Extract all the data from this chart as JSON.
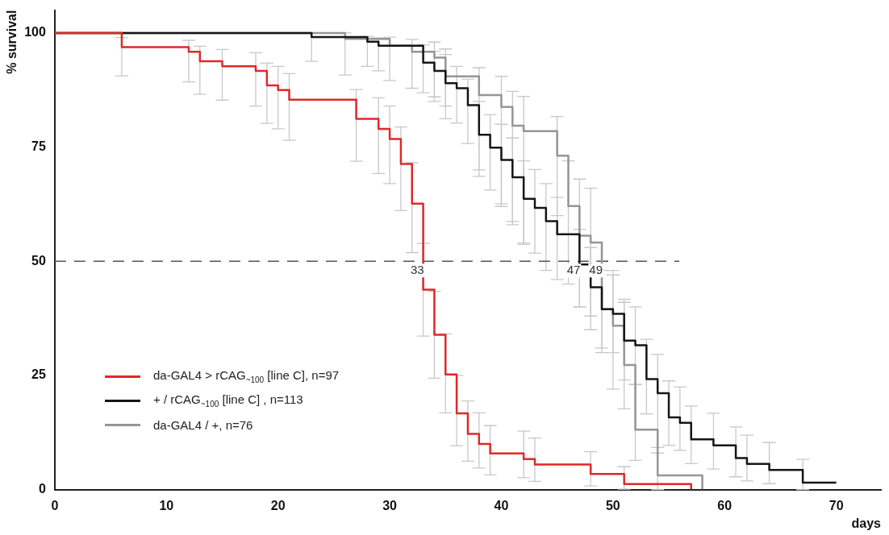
{
  "chart_data": {
    "type": "step",
    "xlabel": "days",
    "ylabel": "% survival",
    "xlim": [
      0,
      74
    ],
    "xticks": [
      0,
      10,
      20,
      30,
      40,
      50,
      60,
      70
    ],
    "ylim": [
      0,
      105
    ],
    "yticks": [
      0,
      25,
      50,
      75,
      100
    ],
    "grid": false,
    "legend": "bottom left",
    "marker": "none",
    "line_style": "solid",
    "ref_lines": [
      {
        "axis": "y",
        "value": 50,
        "label": null,
        "color": "#555555",
        "line_style": "dashed"
      }
    ],
    "annotations": [
      {
        "text": "33",
        "x": 33,
        "y": 50
      },
      {
        "text": "47",
        "x": 47,
        "y": 50
      },
      {
        "text": "49",
        "x": 49,
        "y": 50
      }
    ],
    "series": [
      {
        "name": "da-GAL4 > rCAG$_{~100}$ [line C], n=97",
        "color": "#e02828",
        "x": [
          0,
          6,
          12,
          13,
          15,
          18,
          19,
          20,
          21,
          27,
          29,
          30,
          31,
          32,
          33,
          34,
          35,
          36,
          37,
          38,
          39,
          42,
          43,
          48,
          51,
          57
        ],
        "values": [
          100,
          96.9,
          95.9,
          93.8,
          92.7,
          91.7,
          88.5,
          87.5,
          85.4,
          81.2,
          79.0,
          76.8,
          71.3,
          62.6,
          43.8,
          33.9,
          25.2,
          16.7,
          12.2,
          10.0,
          7.9,
          6.7,
          5.5,
          3.4,
          1.2,
          0
        ],
        "errors": [
          null,
          [
            90.6,
            99.0
          ],
          [
            89.3,
            98.4
          ],
          [
            86.6,
            97.1
          ],
          [
            85.3,
            96.4
          ],
          [
            84.0,
            95.7
          ],
          [
            80.2,
            93.4
          ],
          [
            79.0,
            92.7
          ],
          [
            76.5,
            91.1
          ],
          [
            71.9,
            87.6
          ],
          [
            69.2,
            85.8
          ],
          [
            67.0,
            84.0
          ],
          [
            61.1,
            79.4
          ],
          [
            51.9,
            71.6
          ],
          [
            33.6,
            53.9
          ],
          [
            24.4,
            43.4
          ],
          [
            16.8,
            34.1
          ],
          [
            9.6,
            25.0
          ],
          [
            6.2,
            19.4
          ],
          [
            4.7,
            16.8
          ],
          [
            3.2,
            14.0
          ],
          [
            2.6,
            12.8
          ],
          [
            1.8,
            11.3
          ],
          [
            0.8,
            8.3
          ],
          [
            0.1,
            5.0
          ],
          null
        ]
      },
      {
        "name": "+ / rCAG$_{~100}$ [line C] , n=113",
        "color": "#151515",
        "x": [
          0,
          23,
          28,
          29,
          33,
          34,
          35,
          36,
          37,
          38,
          39,
          40,
          41,
          42,
          43,
          44,
          45,
          47,
          48,
          49,
          50,
          51,
          52,
          53,
          54,
          55,
          56,
          57,
          59,
          61,
          62,
          64,
          67,
          70
        ],
        "values": [
          100,
          99.1,
          98.1,
          97.2,
          93.5,
          91.7,
          89.0,
          87.9,
          84.2,
          77.7,
          74.9,
          72.2,
          68.4,
          63.7,
          61.7,
          58.8,
          55.9,
          49.3,
          44.3,
          39.5,
          38.5,
          32.6,
          31.6,
          24.2,
          21.1,
          15.8,
          14.6,
          11.0,
          9.7,
          6.9,
          5.6,
          4.3,
          1.5,
          1.5
        ],
        "errors": [
          null,
          [
            93.8,
            100
          ],
          [
            92.7,
            99.2
          ],
          [
            91.7,
            98.9
          ],
          [
            86.9,
            97.4
          ],
          [
            85,
            96
          ],
          [
            81.2,
            95.3
          ],
          [
            80.3,
            92.7
          ],
          [
            75.8,
            89.9
          ],
          [
            70,
            85
          ],
          [
            65.6,
            82.1
          ],
          [
            62,
            80
          ],
          [
            58,
            77
          ],
          [
            54,
            72
          ],
          [
            51.8,
            70.1
          ],
          [
            48,
            67
          ],
          [
            46,
            64
          ],
          [
            40,
            57
          ],
          [
            35,
            53
          ],
          [
            31,
            48
          ],
          [
            30,
            47
          ],
          [
            24,
            41
          ],
          [
            23,
            40
          ],
          [
            16.6,
            32.9
          ],
          [
            9.2,
            29.6
          ],
          [
            9.7,
            23.8
          ],
          [
            8.6,
            22.5
          ],
          [
            5.7,
            18.3
          ],
          [
            4.5,
            16.7
          ],
          [
            2.8,
            13.7
          ],
          [
            1.9,
            11.9
          ],
          [
            1.3,
            10.3
          ],
          [
            0,
            6.6
          ],
          null
        ]
      },
      {
        "name": "da-GAL4 / +, n=76",
        "color": "#959595",
        "x": [
          0,
          26,
          30,
          32,
          34,
          35,
          38,
          40,
          41,
          42,
          45,
          46,
          47,
          48,
          49,
          50,
          51,
          52,
          54,
          58
        ],
        "values": [
          100,
          98.7,
          97.2,
          95.9,
          94.6,
          90.5,
          86.4,
          83.8,
          79.7,
          78.5,
          73.1,
          62.1,
          55.6,
          54.1,
          39.5,
          35.9,
          27.3,
          13.1,
          3.1,
          0
        ],
        "errors": [
          null,
          [
            90.8,
            100
          ],
          [
            89.6,
            99.1
          ],
          [
            87.9,
            98.6
          ],
          [
            86,
            98
          ],
          [
            84,
            96.5
          ],
          [
            68.6,
            92.4
          ],
          [
            62.6,
            90.5
          ],
          [
            58.7,
            87.2
          ],
          [
            53.7,
            86.1
          ],
          [
            60,
            81.7
          ],
          [
            45,
            72
          ],
          [
            40,
            68
          ],
          [
            38,
            66
          ],
          [
            30,
            50
          ],
          [
            22,
            48
          ],
          [
            17.7,
            41.7
          ],
          [
            6.4,
            23.0
          ],
          [
            0,
            8
          ],
          null
        ]
      }
    ]
  }
}
